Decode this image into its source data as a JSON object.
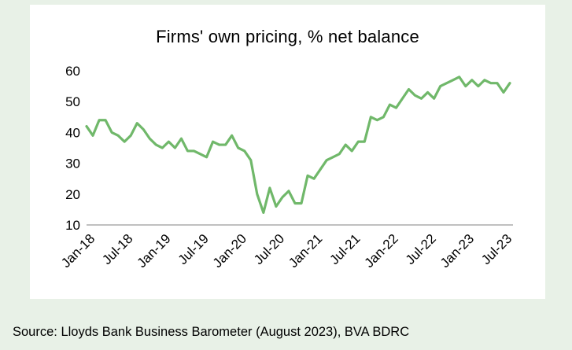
{
  "source": "Source: Lloyds Bank Business Barometer (August 2023), BVA BDRC",
  "chart_data": {
    "type": "line",
    "title": "Firms' own pricing, % net balance",
    "xlabel": "",
    "ylabel": "",
    "ylim": [
      10,
      60
    ],
    "yticks": [
      10,
      20,
      30,
      40,
      50,
      60
    ],
    "grid": false,
    "legend": "none",
    "line_color": "#70b86a",
    "xtick_labels": [
      "Jan-18",
      "Jul-18",
      "Jan-19",
      "Jul-19",
      "Jan-20",
      "Jul-20",
      "Jan-21",
      "Jul-21",
      "Jan-22",
      "Jul-22",
      "Jan-23",
      "Jul-23"
    ],
    "xtick_month_index": [
      0,
      6,
      12,
      18,
      24,
      30,
      36,
      42,
      48,
      54,
      60,
      66
    ],
    "x": [
      "Jan-18",
      "Feb-18",
      "Mar-18",
      "Apr-18",
      "May-18",
      "Jun-18",
      "Jul-18",
      "Aug-18",
      "Sep-18",
      "Oct-18",
      "Nov-18",
      "Dec-18",
      "Jan-19",
      "Feb-19",
      "Mar-19",
      "Apr-19",
      "May-19",
      "Jun-19",
      "Jul-19",
      "Aug-19",
      "Sep-19",
      "Oct-19",
      "Nov-19",
      "Dec-19",
      "Jan-20",
      "Feb-20",
      "Mar-20",
      "Apr-20",
      "May-20",
      "Jun-20",
      "Jul-20",
      "Aug-20",
      "Sep-20",
      "Oct-20",
      "Nov-20",
      "Dec-20",
      "Jan-21",
      "Feb-21",
      "Mar-21",
      "Apr-21",
      "May-21",
      "Jun-21",
      "Jul-21",
      "Aug-21",
      "Sep-21",
      "Oct-21",
      "Nov-21",
      "Dec-21",
      "Jan-22",
      "Feb-22",
      "Mar-22",
      "Apr-22",
      "May-22",
      "Jun-22",
      "Jul-22",
      "Aug-22",
      "Sep-22",
      "Oct-22",
      "Nov-22",
      "Dec-22",
      "Jan-23",
      "Feb-23",
      "Mar-23",
      "Apr-23",
      "May-23",
      "Jun-23",
      "Jul-23",
      "Aug-23"
    ],
    "series": [
      {
        "values": [
          42,
          39,
          44,
          44,
          40,
          39,
          37,
          39,
          43,
          41,
          38,
          36,
          35,
          37,
          35,
          38,
          34,
          34,
          33,
          32,
          37,
          36,
          36,
          39,
          35,
          34,
          31,
          20,
          14,
          22,
          16,
          19,
          21,
          17,
          17,
          26,
          25,
          28,
          31,
          32,
          33,
          36,
          34,
          37,
          37,
          45,
          44,
          45,
          49,
          48,
          51,
          54,
          52,
          51,
          53,
          51,
          55,
          56,
          57,
          58,
          55,
          57,
          55,
          57,
          56,
          56,
          53,
          56
        ]
      }
    ]
  }
}
